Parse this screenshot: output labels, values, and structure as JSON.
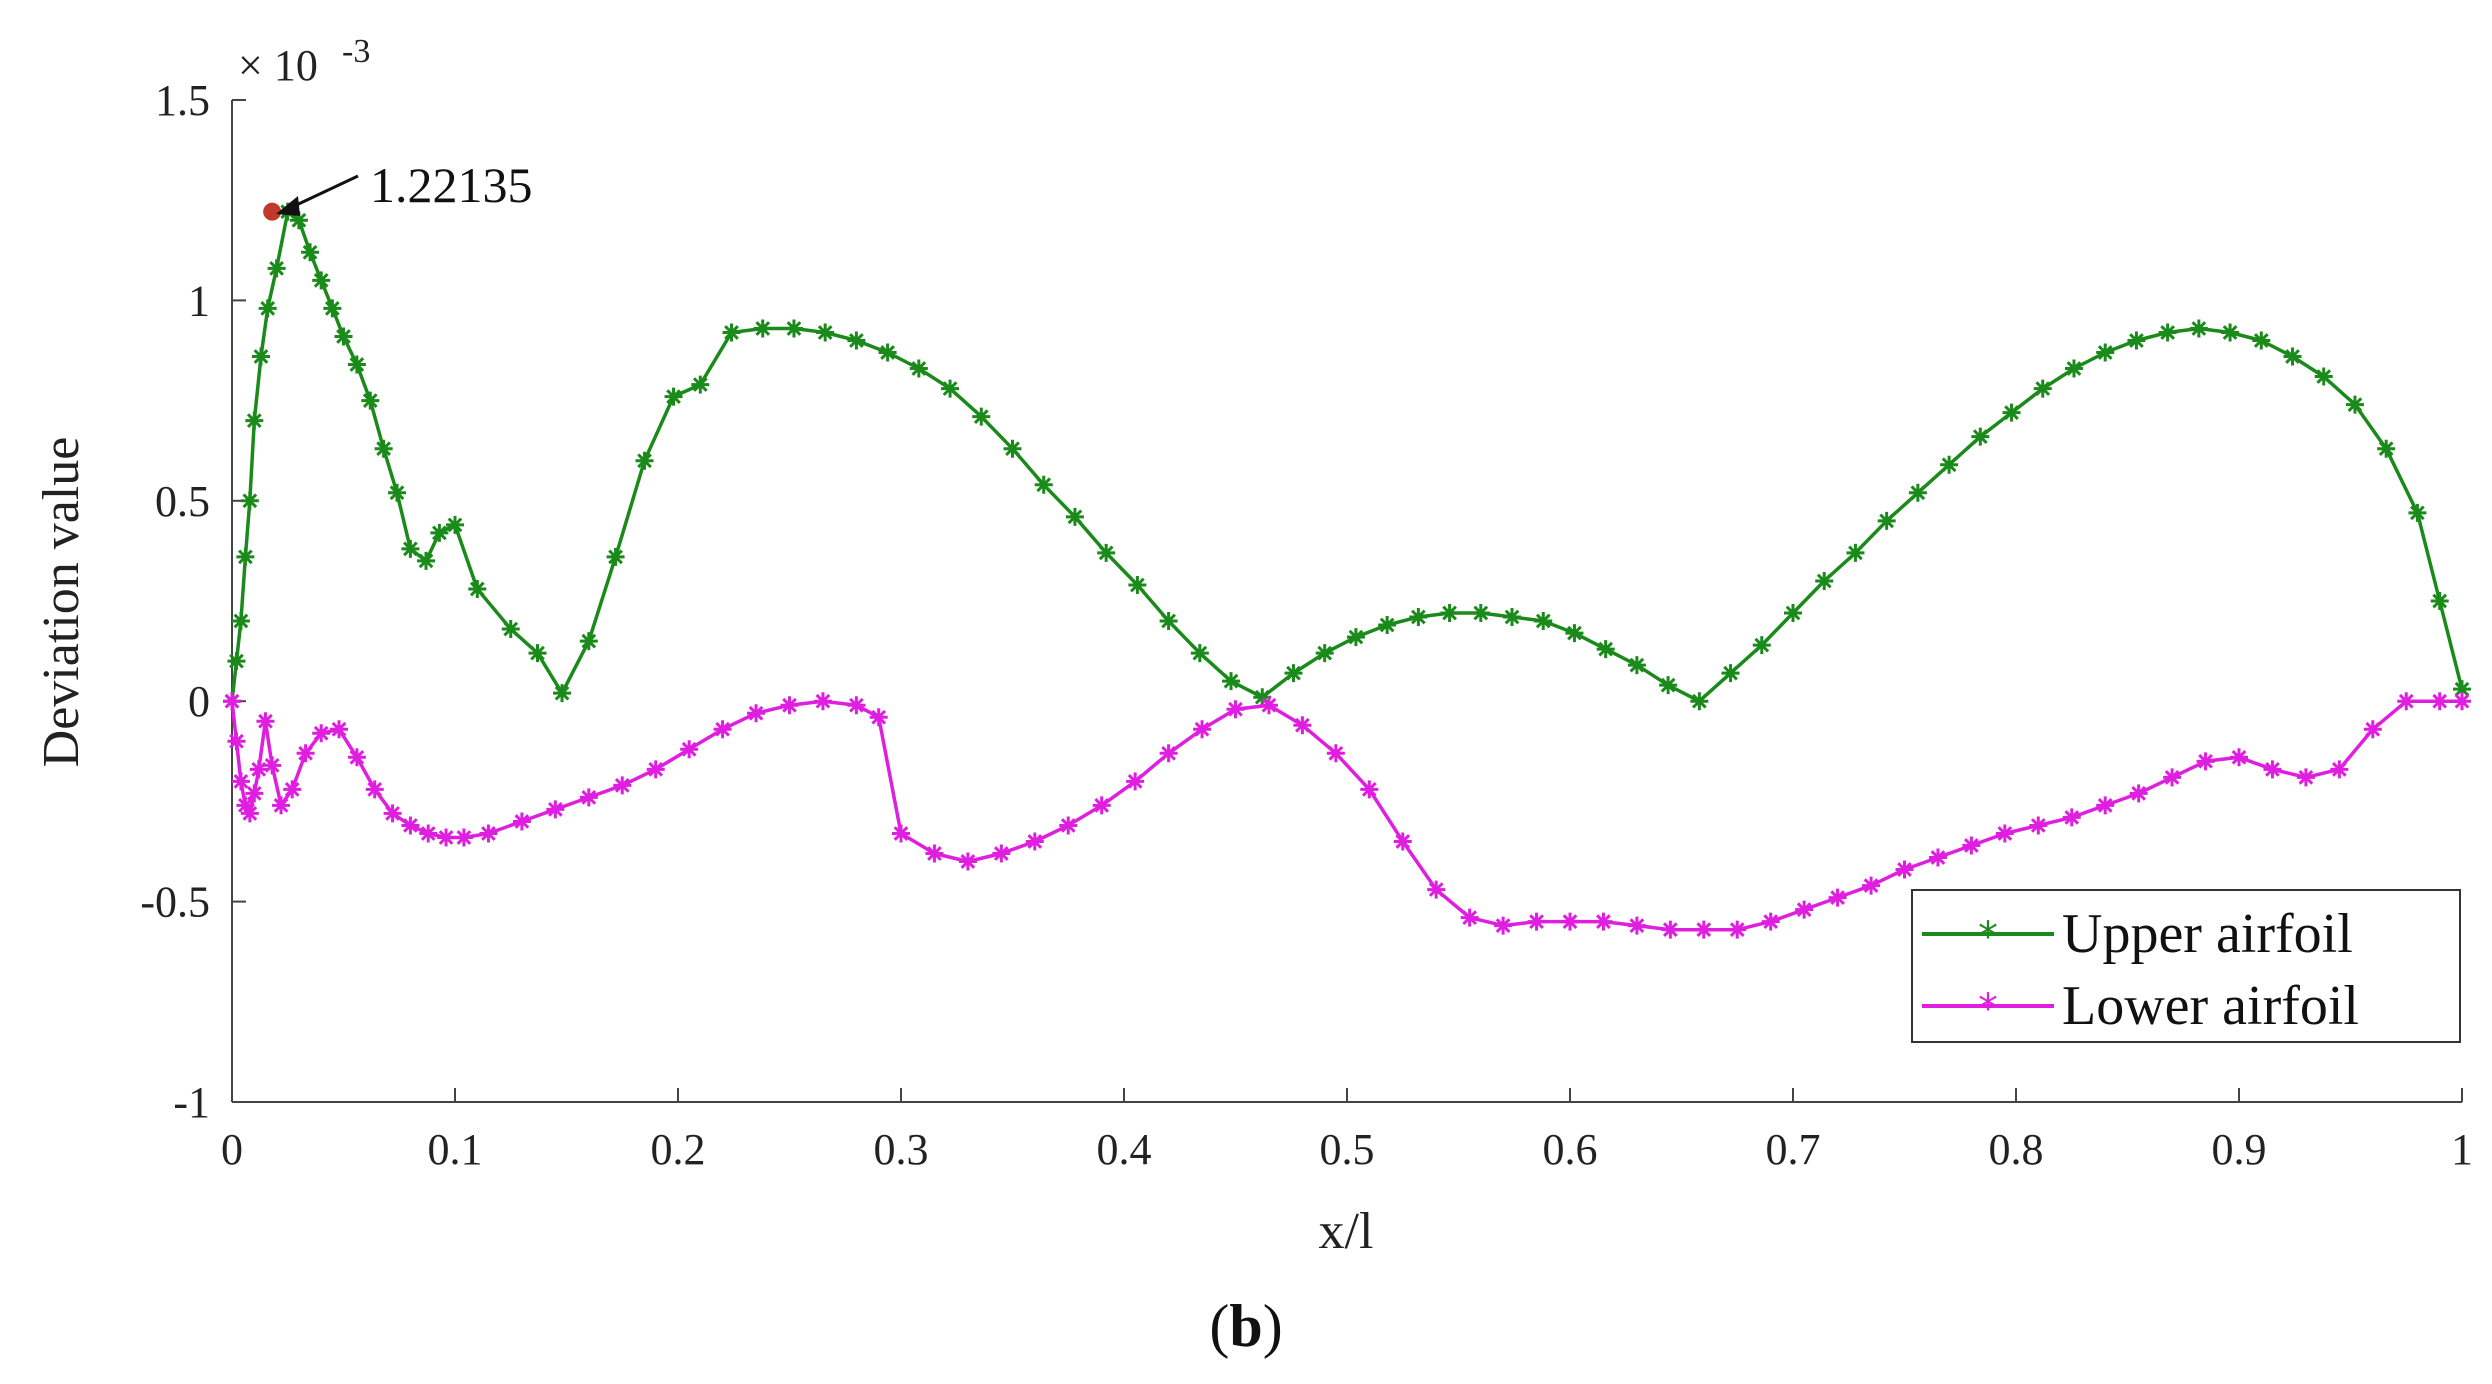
{
  "chart_data": {
    "type": "line",
    "xlabel": "x/l",
    "ylabel": "Deviation value",
    "xlim": [
      0,
      1
    ],
    "ylim": [
      -1,
      1.5
    ],
    "y_multiplier_label": "× 10",
    "y_multiplier_exp": "-3",
    "xticks": [
      "0",
      "0.1",
      "0.2",
      "0.3",
      "0.4",
      "0.5",
      "0.6",
      "0.7",
      "0.8",
      "0.9",
      "1"
    ],
    "yticks": [
      "-1",
      "-0.5",
      "0",
      "0.5",
      "1",
      "1.5"
    ],
    "grid": false,
    "legend_position": "bottom-right",
    "subfigure_label": "b",
    "annotation": {
      "text": "1.22135",
      "x": 0.018,
      "y": 1.22135
    },
    "series": [
      {
        "name": "Upper airfoil",
        "color": "#1a8a1a",
        "marker": "asterisk",
        "x": [
          0,
          0.002,
          0.004,
          0.006,
          0.008,
          0.01,
          0.013,
          0.016,
          0.02,
          0.025,
          0.03,
          0.035,
          0.04,
          0.045,
          0.05,
          0.056,
          0.062,
          0.068,
          0.074,
          0.08,
          0.087,
          0.093,
          0.1,
          0.11,
          0.125,
          0.137,
          0.148,
          0.16,
          0.172,
          0.185,
          0.198,
          0.21,
          0.224,
          0.238,
          0.252,
          0.266,
          0.28,
          0.294,
          0.308,
          0.322,
          0.336,
          0.35,
          0.364,
          0.378,
          0.392,
          0.406,
          0.42,
          0.434,
          0.448,
          0.462,
          0.476,
          0.49,
          0.504,
          0.518,
          0.532,
          0.546,
          0.56,
          0.574,
          0.588,
          0.602,
          0.616,
          0.63,
          0.644,
          0.658,
          0.672,
          0.686,
          0.7,
          0.714,
          0.728,
          0.742,
          0.756,
          0.77,
          0.784,
          0.798,
          0.812,
          0.826,
          0.84,
          0.854,
          0.868,
          0.882,
          0.896,
          0.91,
          0.924,
          0.938,
          0.952,
          0.966,
          0.98,
          0.99,
          1.0
        ],
        "y": [
          0.0,
          0.1,
          0.2,
          0.36,
          0.5,
          0.7,
          0.86,
          0.98,
          1.08,
          1.22135,
          1.2,
          1.12,
          1.05,
          0.98,
          0.91,
          0.84,
          0.75,
          0.63,
          0.52,
          0.38,
          0.35,
          0.42,
          0.44,
          0.28,
          0.18,
          0.12,
          0.02,
          0.15,
          0.36,
          0.6,
          0.76,
          0.79,
          0.92,
          0.93,
          0.93,
          0.92,
          0.9,
          0.87,
          0.83,
          0.78,
          0.71,
          0.63,
          0.54,
          0.46,
          0.37,
          0.29,
          0.2,
          0.12,
          0.05,
          0.01,
          0.07,
          0.12,
          0.16,
          0.19,
          0.21,
          0.22,
          0.22,
          0.21,
          0.2,
          0.17,
          0.13,
          0.09,
          0.04,
          0.0,
          0.07,
          0.14,
          0.22,
          0.3,
          0.37,
          0.45,
          0.52,
          0.59,
          0.66,
          0.72,
          0.78,
          0.83,
          0.87,
          0.9,
          0.92,
          0.93,
          0.92,
          0.9,
          0.86,
          0.81,
          0.74,
          0.63,
          0.47,
          0.25,
          0.03
        ]
      },
      {
        "name": "Lower airfoil",
        "color": "#e01ee0",
        "marker": "asterisk",
        "x": [
          0,
          0.002,
          0.004,
          0.006,
          0.008,
          0.01,
          0.012,
          0.015,
          0.018,
          0.022,
          0.027,
          0.033,
          0.04,
          0.048,
          0.056,
          0.064,
          0.072,
          0.08,
          0.088,
          0.096,
          0.104,
          0.115,
          0.13,
          0.145,
          0.16,
          0.175,
          0.19,
          0.205,
          0.22,
          0.235,
          0.25,
          0.265,
          0.28,
          0.29,
          0.3,
          0.315,
          0.33,
          0.345,
          0.36,
          0.375,
          0.39,
          0.405,
          0.42,
          0.435,
          0.45,
          0.465,
          0.48,
          0.495,
          0.51,
          0.525,
          0.54,
          0.555,
          0.57,
          0.585,
          0.6,
          0.615,
          0.63,
          0.645,
          0.66,
          0.675,
          0.69,
          0.705,
          0.72,
          0.735,
          0.75,
          0.765,
          0.78,
          0.795,
          0.81,
          0.825,
          0.84,
          0.855,
          0.87,
          0.885,
          0.9,
          0.915,
          0.93,
          0.945,
          0.96,
          0.975,
          0.99,
          1.0
        ],
        "y": [
          0.0,
          -0.1,
          -0.2,
          -0.26,
          -0.28,
          -0.23,
          -0.17,
          -0.05,
          -0.16,
          -0.26,
          -0.22,
          -0.13,
          -0.08,
          -0.07,
          -0.14,
          -0.22,
          -0.28,
          -0.31,
          -0.33,
          -0.34,
          -0.34,
          -0.33,
          -0.3,
          -0.27,
          -0.24,
          -0.21,
          -0.17,
          -0.12,
          -0.07,
          -0.03,
          -0.01,
          -0.0,
          -0.01,
          -0.04,
          -0.33,
          -0.38,
          -0.4,
          -0.38,
          -0.35,
          -0.31,
          -0.26,
          -0.2,
          -0.13,
          -0.07,
          -0.02,
          -0.01,
          -0.06,
          -0.13,
          -0.22,
          -0.35,
          -0.47,
          -0.54,
          -0.56,
          -0.55,
          -0.55,
          -0.55,
          -0.56,
          -0.57,
          -0.57,
          -0.57,
          -0.55,
          -0.52,
          -0.49,
          -0.46,
          -0.42,
          -0.39,
          -0.36,
          -0.33,
          -0.31,
          -0.29,
          -0.26,
          -0.23,
          -0.19,
          -0.15,
          -0.14,
          -0.17,
          -0.19,
          -0.17,
          -0.07,
          -0.0,
          -0.0,
          -0.0
        ]
      }
    ]
  }
}
